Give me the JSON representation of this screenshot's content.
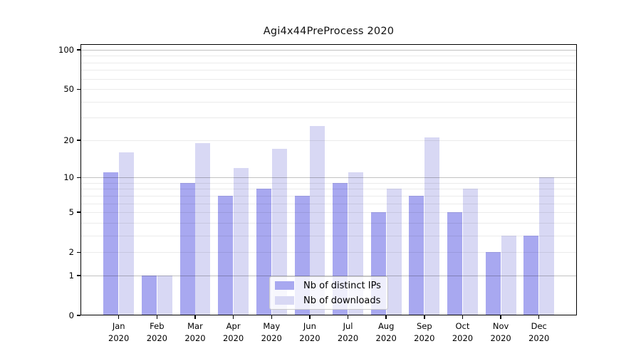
{
  "chart_data": {
    "type": "bar",
    "title": "Agi4x44PreProcess 2020",
    "categories": [
      "Jan",
      "Feb",
      "Mar",
      "Apr",
      "May",
      "Jun",
      "Jul",
      "Aug",
      "Sep",
      "Oct",
      "Nov",
      "Dec"
    ],
    "x_year_label": "2020",
    "series": [
      {
        "name": "Nb of distinct IPs",
        "color": "#a8a8f0",
        "values": [
          11,
          1,
          9,
          7,
          8,
          7,
          9,
          5,
          7,
          5,
          2,
          3
        ]
      },
      {
        "name": "Nb of downloads",
        "color": "#d8d8f4",
        "values": [
          16,
          1,
          19,
          12,
          17,
          26,
          11,
          8,
          21,
          8,
          3,
          10
        ]
      }
    ],
    "yscale": "symlog (y proportional to ln(1+value))",
    "yticks": [
      100,
      50,
      20,
      10,
      5,
      2,
      1,
      0
    ],
    "ylim": [
      0,
      110
    ],
    "grid": "horizontal; major lines at 1, 10, 100; minor lines at 2-9 and 20-90",
    "legend_position": "lower center"
  }
}
